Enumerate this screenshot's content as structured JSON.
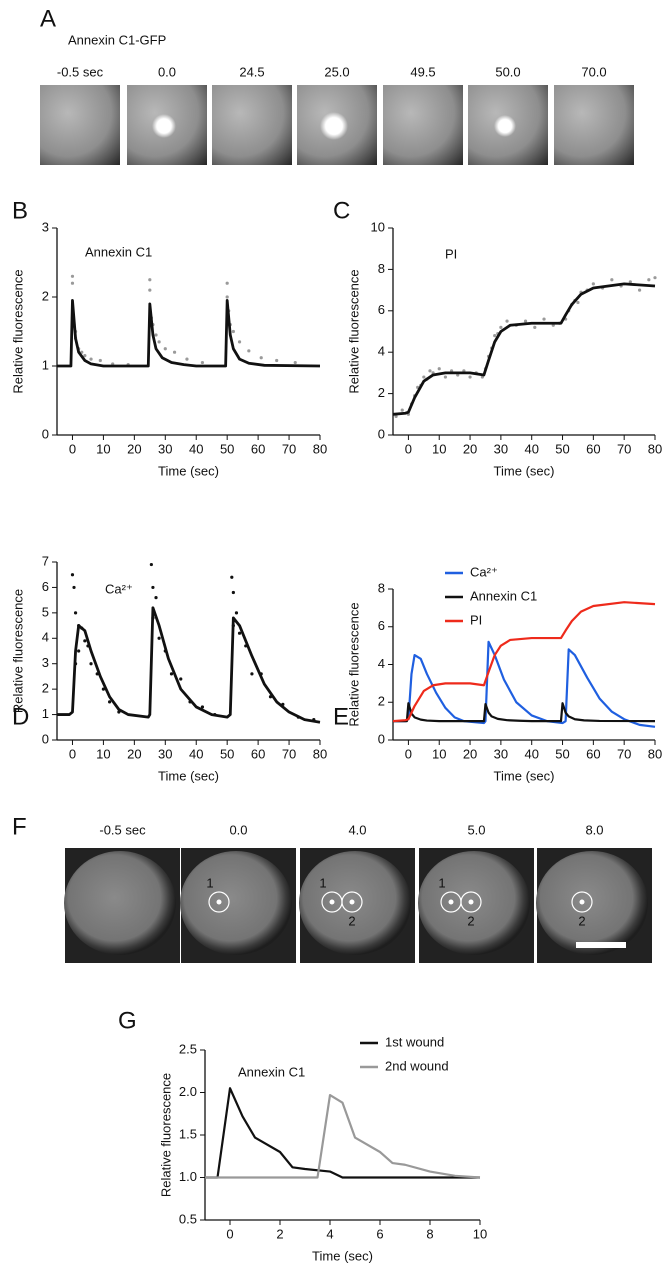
{
  "panels": {
    "A": {
      "letter": "A",
      "title": "Annexin C1-GFP",
      "frames": [
        "-0.5 sec",
        "0.0",
        "24.5",
        "25.0",
        "49.5",
        "50.0",
        "70.0"
      ]
    },
    "F": {
      "letter": "F",
      "frames": [
        "-0.5 sec",
        "0.0",
        "4.0",
        "5.0",
        "8.0"
      ],
      "wound_labels": [
        "1",
        "2"
      ]
    }
  },
  "chart_data": [
    {
      "type": "line",
      "letter": "B",
      "annotation": "Annexin C1",
      "xlabel": "Time (sec)",
      "ylabel": "Relative fluorescence",
      "xlim": [
        -5,
        80
      ],
      "xticks": [
        0,
        10,
        20,
        30,
        40,
        50,
        60,
        70,
        80
      ],
      "ylim": [
        0,
        3
      ],
      "yticks": [
        0,
        1,
        2,
        3
      ],
      "series": [
        {
          "style": "points",
          "color": "#9a9a9a",
          "x": [
            0,
            0,
            0,
            0.5,
            1,
            1,
            2,
            3,
            4,
            6,
            9,
            13,
            18,
            25,
            25,
            25.5,
            26,
            27,
            28,
            30,
            33,
            37,
            42,
            50,
            50,
            50.5,
            51,
            52,
            54,
            57,
            61,
            66,
            72
          ],
          "values": [
            2.3,
            2.2,
            1.7,
            1.6,
            1.4,
            1.5,
            1.25,
            1.2,
            1.15,
            1.1,
            1.08,
            1.03,
            1.02,
            2.25,
            2.1,
            1.7,
            1.6,
            1.45,
            1.35,
            1.25,
            1.2,
            1.1,
            1.05,
            2.2,
            2.0,
            1.8,
            1.6,
            1.5,
            1.35,
            1.22,
            1.12,
            1.08,
            1.05
          ]
        },
        {
          "style": "line",
          "color": "#111111",
          "x": [
            -5,
            -0.5,
            0,
            1,
            2,
            4,
            6,
            10,
            24.5,
            25,
            26,
            27,
            29,
            32,
            36,
            40,
            49.5,
            50,
            51,
            52,
            54,
            57,
            62,
            80
          ],
          "values": [
            1,
            1,
            1.95,
            1.4,
            1.2,
            1.08,
            1.03,
            1,
            1,
            1.9,
            1.45,
            1.25,
            1.12,
            1.05,
            1.02,
            1,
            1,
            1.95,
            1.45,
            1.25,
            1.1,
            1.04,
            1.01,
            1
          ]
        }
      ]
    },
    {
      "type": "line",
      "letter": "C",
      "annotation": "PI",
      "xlabel": "Time (sec)",
      "ylabel": "Relative fluorescence",
      "xlim": [
        -5,
        80
      ],
      "xticks": [
        0,
        10,
        20,
        30,
        40,
        50,
        60,
        70,
        80
      ],
      "ylim": [
        0,
        10
      ],
      "yticks": [
        0,
        2,
        4,
        6,
        8,
        10
      ],
      "series": [
        {
          "style": "points",
          "color": "#9a9a9a",
          "x": [
            -4,
            -2,
            0,
            1,
            2,
            3,
            4,
            5,
            6,
            7,
            8,
            10,
            12,
            14,
            16,
            18,
            20,
            22,
            24,
            25,
            26,
            27,
            28,
            29,
            30,
            32,
            35,
            38,
            41,
            44,
            47,
            49,
            51,
            52,
            53,
            54,
            55,
            56,
            58,
            60,
            63,
            66,
            69,
            72,
            75,
            78,
            80
          ],
          "values": [
            0.9,
            1.2,
            1.0,
            1.5,
            1.9,
            2.3,
            2.4,
            2.8,
            2.7,
            3.1,
            3.0,
            3.2,
            2.8,
            3.1,
            2.9,
            3.1,
            2.8,
            3.0,
            2.8,
            3.2,
            3.8,
            4.2,
            4.8,
            4.9,
            5.2,
            5.5,
            5.3,
            5.5,
            5.2,
            5.6,
            5.3,
            5.4,
            5.6,
            6.0,
            6.3,
            6.5,
            6.4,
            6.9,
            7.0,
            7.3,
            7.1,
            7.5,
            7.2,
            7.4,
            7.0,
            7.5,
            7.6
          ]
        },
        {
          "style": "line",
          "color": "#111111",
          "x": [
            -5,
            -1,
            0,
            2,
            5,
            8,
            12,
            20,
            24.5,
            26,
            28,
            30,
            33,
            40,
            49.5,
            51,
            53,
            56,
            60,
            70,
            80
          ],
          "values": [
            1,
            1.05,
            1.1,
            1.8,
            2.6,
            2.9,
            3.0,
            3.0,
            2.9,
            3.6,
            4.5,
            5.0,
            5.3,
            5.4,
            5.4,
            5.8,
            6.3,
            6.8,
            7.1,
            7.3,
            7.2
          ]
        }
      ]
    },
    {
      "type": "line",
      "letter": "D",
      "annotation": "Ca²⁺",
      "xlabel": "Time (sec)",
      "ylabel": "Relative fluorescence",
      "xlim": [
        -5,
        80
      ],
      "xticks": [
        0,
        10,
        20,
        30,
        40,
        50,
        60,
        70,
        80
      ],
      "ylim": [
        0,
        7
      ],
      "yticks": [
        0,
        1,
        2,
        3,
        4,
        5,
        6,
        7
      ],
      "series": [
        {
          "style": "points",
          "color": "#111111",
          "x": [
            0,
            0.5,
            1,
            1,
            2,
            2,
            3,
            4,
            5,
            6,
            8,
            10,
            12,
            15,
            25.5,
            26,
            26,
            27,
            28,
            30,
            32,
            35,
            38,
            42,
            46,
            51.5,
            52,
            52,
            53,
            54,
            56,
            58,
            61,
            64,
            68,
            73,
            78
          ],
          "values": [
            6.5,
            6.0,
            5.0,
            3.0,
            4.5,
            3.5,
            4.4,
            3.9,
            3.7,
            3.0,
            2.6,
            2.0,
            1.5,
            1.1,
            6.9,
            6.0,
            4.8,
            5.6,
            4.0,
            3.5,
            2.6,
            2.4,
            1.5,
            1.3,
            1.0,
            6.4,
            5.8,
            4.5,
            5.0,
            4.2,
            3.7,
            2.6,
            2.6,
            1.7,
            1.4,
            0.9,
            0.8
          ]
        },
        {
          "style": "line",
          "color": "#111111",
          "x": [
            -5,
            -1,
            0,
            1,
            2,
            4,
            6,
            9,
            12,
            15,
            18,
            24.5,
            25,
            26,
            28,
            31,
            35,
            40,
            45,
            50,
            51,
            52,
            54,
            58,
            62,
            66,
            70,
            75,
            80
          ],
          "values": [
            1,
            1,
            1.1,
            3.5,
            4.5,
            4.3,
            3.5,
            2.5,
            1.7,
            1.2,
            1.0,
            0.9,
            1.0,
            5.2,
            4.5,
            3.2,
            2.0,
            1.3,
            1.0,
            0.9,
            1.0,
            4.8,
            4.5,
            3.3,
            2.2,
            1.5,
            1.1,
            0.8,
            0.7
          ]
        }
      ]
    },
    {
      "type": "line",
      "letter": "E",
      "xlabel": "Time (sec)",
      "ylabel": "Relative fluorescence",
      "xlim": [
        -5,
        80
      ],
      "xticks": [
        0,
        10,
        20,
        30,
        40,
        50,
        60,
        70,
        80
      ],
      "ylim": [
        0,
        8
      ],
      "yticks": [
        0,
        2,
        4,
        6,
        8
      ],
      "series": [
        {
          "name": "Ca²⁺",
          "style": "line",
          "color": "#1f5fe0",
          "x": [
            -5,
            -1,
            0,
            1,
            2,
            4,
            6,
            9,
            12,
            15,
            18,
            24.5,
            25,
            26,
            28,
            31,
            35,
            40,
            45,
            50,
            51,
            52,
            54,
            58,
            62,
            66,
            70,
            75,
            80
          ],
          "values": [
            1,
            1,
            1.1,
            3.5,
            4.5,
            4.3,
            3.5,
            2.5,
            1.7,
            1.2,
            1.0,
            0.9,
            1.0,
            5.2,
            4.5,
            3.2,
            2.0,
            1.3,
            1.0,
            0.9,
            1.0,
            4.8,
            4.5,
            3.3,
            2.2,
            1.5,
            1.1,
            0.8,
            0.7
          ]
        },
        {
          "name": "Annexin C1",
          "style": "line",
          "color": "#111111",
          "x": [
            -5,
            -0.5,
            0,
            1,
            2,
            4,
            6,
            10,
            24.5,
            25,
            26,
            27,
            29,
            32,
            36,
            40,
            49.5,
            50,
            51,
            52,
            54,
            57,
            62,
            80
          ],
          "values": [
            1,
            1,
            1.95,
            1.4,
            1.2,
            1.08,
            1.03,
            1,
            1,
            1.9,
            1.45,
            1.25,
            1.12,
            1.05,
            1.02,
            1,
            1,
            1.95,
            1.45,
            1.25,
            1.1,
            1.04,
            1.01,
            1
          ]
        },
        {
          "name": "PI",
          "style": "line",
          "color": "#ee2a1b",
          "x": [
            -5,
            -1,
            0,
            2,
            5,
            8,
            12,
            20,
            24.5,
            26,
            28,
            30,
            33,
            40,
            49.5,
            51,
            53,
            56,
            60,
            70,
            80
          ],
          "values": [
            1,
            1.05,
            1.1,
            1.8,
            2.6,
            2.9,
            3.0,
            3.0,
            2.9,
            3.6,
            4.5,
            5.0,
            5.3,
            5.4,
            5.4,
            5.8,
            6.3,
            6.8,
            7.1,
            7.3,
            7.2
          ]
        }
      ]
    },
    {
      "type": "line",
      "letter": "G",
      "annotation": "Annexin C1",
      "xlabel": "Time (sec)",
      "ylabel": "Relative fluorescence",
      "xlim": [
        -1,
        10
      ],
      "xticks": [
        0,
        2,
        4,
        6,
        8,
        10
      ],
      "ylim": [
        0.5,
        2.5
      ],
      "yticks": [
        {
          "value": 0.5,
          "label": "0.5"
        },
        {
          "value": 1,
          "label": "1.0"
        },
        {
          "value": 1.5,
          "label": "1.5"
        },
        {
          "value": 2,
          "label": "2.0"
        },
        {
          "value": 2.5,
          "label": "2.5"
        }
      ],
      "series": [
        {
          "name": "1st wound",
          "style": "line",
          "color": "#111111",
          "x": [
            -1,
            -0.5,
            0,
            0.5,
            1,
            2,
            2.5,
            3,
            4,
            4.5,
            10
          ],
          "values": [
            1,
            1,
            2.05,
            1.72,
            1.47,
            1.3,
            1.12,
            1.1,
            1.07,
            1.0,
            1.0
          ]
        },
        {
          "name": "2nd wound",
          "style": "line",
          "color": "#999999",
          "x": [
            -1,
            3.5,
            4,
            4.5,
            5,
            6,
            6.5,
            7,
            8,
            9,
            10
          ],
          "values": [
            1,
            1,
            1.97,
            1.88,
            1.47,
            1.3,
            1.17,
            1.15,
            1.07,
            1.02,
            1.0
          ]
        }
      ]
    }
  ]
}
